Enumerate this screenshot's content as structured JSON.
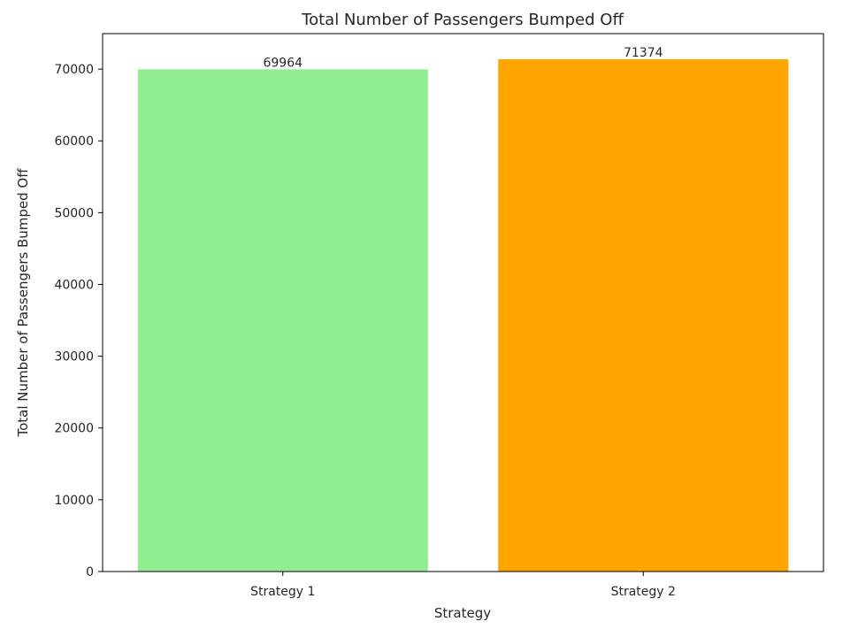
{
  "chart_data": {
    "type": "bar",
    "title": "Total Number of Passengers Bumped Off",
    "xlabel": "Strategy",
    "ylabel": "Total Number of Passengers Bumped Off",
    "categories": [
      "Strategy 1",
      "Strategy 2"
    ],
    "values": [
      69964,
      71374
    ],
    "data_labels": [
      "69964",
      "71374"
    ],
    "bar_colors": [
      "#90ee90",
      "#ffa500"
    ],
    "ylim": [
      0,
      74943
    ],
    "yticks": [
      0,
      10000,
      20000,
      30000,
      40000,
      50000,
      60000,
      70000
    ],
    "ytick_labels": [
      "0",
      "10000",
      "20000",
      "30000",
      "40000",
      "50000",
      "60000",
      "70000"
    ],
    "grid": false,
    "legend": "none"
  }
}
